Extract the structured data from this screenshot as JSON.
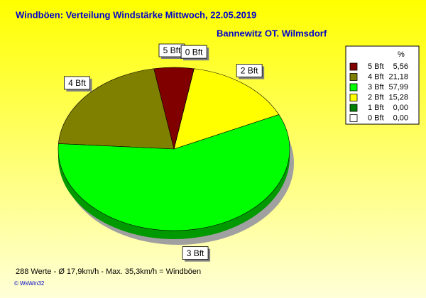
{
  "chart_data": {
    "type": "pie",
    "title": "Windböen: Verteilung Windstärke  Mittwoch, 22.05.2019",
    "subtitle": "Bannewitz OT. Wilmsdorf",
    "legend_header": "%",
    "categories": [
      "5 Bft",
      "4 Bft",
      "3 Bft",
      "2 Bft",
      "1 Bft",
      "0 Bft"
    ],
    "values": [
      5.56,
      21.18,
      57.99,
      15.28,
      0,
      0
    ],
    "value_labels": [
      "5,56",
      "21,18",
      "57,99",
      "15,28",
      "0,00",
      "0,00"
    ],
    "colors": [
      "#800000",
      "#808000",
      "#00ff00",
      "#ffff00",
      "#008000",
      "#ffffff"
    ],
    "legend": "top-right",
    "footer": "288 Werte   -   Ø 17,9km/h  -  Max. 35,3km/h = Windböen",
    "credit": "© WsWin32"
  }
}
